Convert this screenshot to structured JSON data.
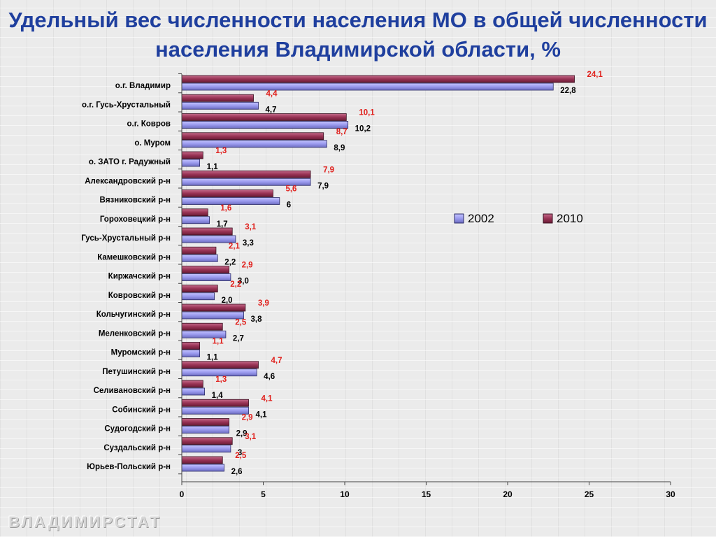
{
  "title": "Удельный вес численности населения МО в общей численности населения Владимирской области, %",
  "watermark": "ВЛАДИМИРСТАТ",
  "colors": {
    "title": "#1f3f9e",
    "series_2002": "#9a9aee",
    "series_2010": "#993355",
    "label_2010": "#e0201c",
    "label_2002": "#000000"
  },
  "chart_data": {
    "type": "bar",
    "orientation": "horizontal",
    "categories": [
      "о.г. Владимир",
      "о.г. Гусь-Хрустальный",
      "о.г. Ковров",
      "о. Муром",
      "о. ЗАТО г. Радужный",
      "Александровский р-н",
      "Вязниковский р-н",
      "Гороховецкий р-н",
      "Гусь-Хрустальный р-н",
      "Камешковский р-н",
      "Киржачский р-н",
      "Ковровский р-н",
      "Кольчугинский р-н",
      "Меленковский р-н",
      "Муромский р-н",
      "Петушинский р-н",
      "Селивановский р-н",
      "Собинский р-н",
      "Судогодский р-н",
      "Суздальский р-н",
      "Юрьев-Польский р-н"
    ],
    "series": [
      {
        "name": "2002",
        "values": [
          22.8,
          4.7,
          10.2,
          8.9,
          1.1,
          7.9,
          6,
          1.7,
          3.3,
          2.2,
          3.0,
          2.0,
          3.8,
          2.7,
          1.1,
          4.6,
          1.4,
          4.1,
          2.9,
          3,
          2.6
        ],
        "labels": [
          "22,8",
          "4,7",
          "10,2",
          "8,9",
          "1,1",
          "7,9",
          "6",
          "1,7",
          "3,3",
          "2,2",
          "3,0",
          "2,0",
          "3,8",
          "2,7",
          "1,1",
          "4,6",
          "1,4",
          "4,1",
          "2,9",
          "3",
          "2,6"
        ]
      },
      {
        "name": "2010",
        "values": [
          24.1,
          4.4,
          10.1,
          8.7,
          1.3,
          7.9,
          5.6,
          1.6,
          3.1,
          2.1,
          2.9,
          2.2,
          3.9,
          2.5,
          1.1,
          4.7,
          1.3,
          4.1,
          2.9,
          3.1,
          2.5
        ],
        "labels": [
          "24,1",
          "4,4",
          "10,1",
          "8,7",
          "1,3",
          "7,9",
          "5,6",
          "1,6",
          "3,1",
          "2,1",
          "2,9",
          "2,2",
          "3,9",
          "2,5",
          "1,1",
          "4,7",
          "1,3",
          "4,1",
          "2,9",
          "3,1",
          "2,5"
        ]
      }
    ],
    "xlim": [
      0,
      30
    ],
    "x_ticks": [
      0,
      5,
      10,
      15,
      20,
      25,
      30
    ],
    "legend": [
      "2002",
      "2010"
    ],
    "legend_position": "right",
    "grid": false
  }
}
